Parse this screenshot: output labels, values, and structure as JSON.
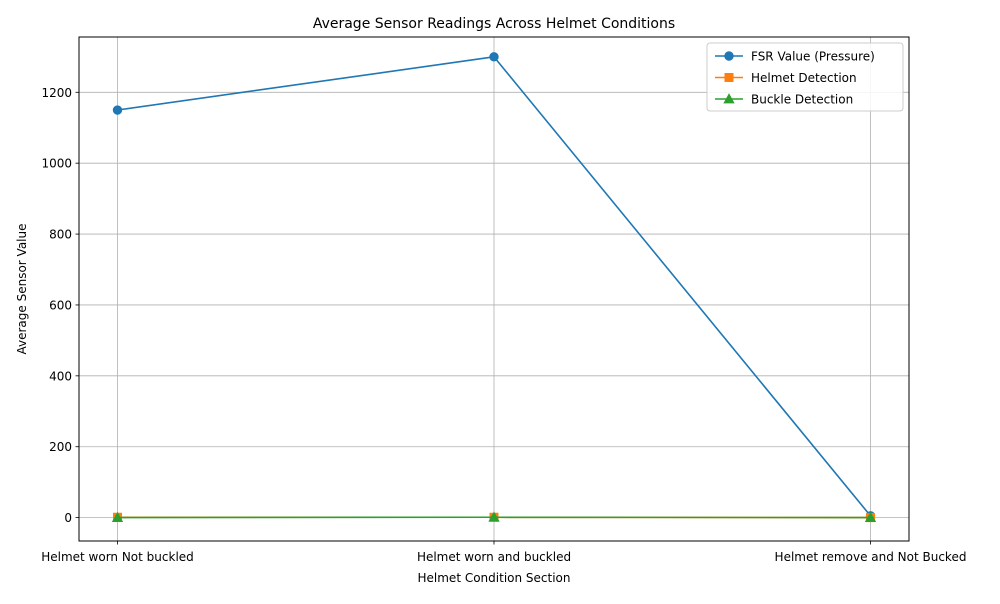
{
  "chart_data": {
    "type": "line",
    "title": "Average Sensor Readings Across Helmet Conditions",
    "xlabel": "Helmet Condition Section",
    "ylabel": "Average Sensor Value",
    "categories": [
      "Helmet worn Not buckled",
      "Helmet worn and buckled",
      "Helmet remove and Not Bucked"
    ],
    "ylim": [
      -66,
      1356
    ],
    "yticks": [
      0,
      200,
      400,
      600,
      800,
      1000,
      1200
    ],
    "grid": true,
    "legend_position": "top-right",
    "series": [
      {
        "name": "FSR Value (Pressure)",
        "values": [
          1150,
          1300,
          5
        ],
        "color": "#1f77b4",
        "marker": "circle"
      },
      {
        "name": "Helmet Detection",
        "values": [
          1,
          1,
          0
        ],
        "color": "#ff7f0e",
        "marker": "square"
      },
      {
        "name": "Buckle Detection",
        "values": [
          0,
          1,
          0
        ],
        "color": "#2ca02c",
        "marker": "triangle"
      }
    ]
  }
}
